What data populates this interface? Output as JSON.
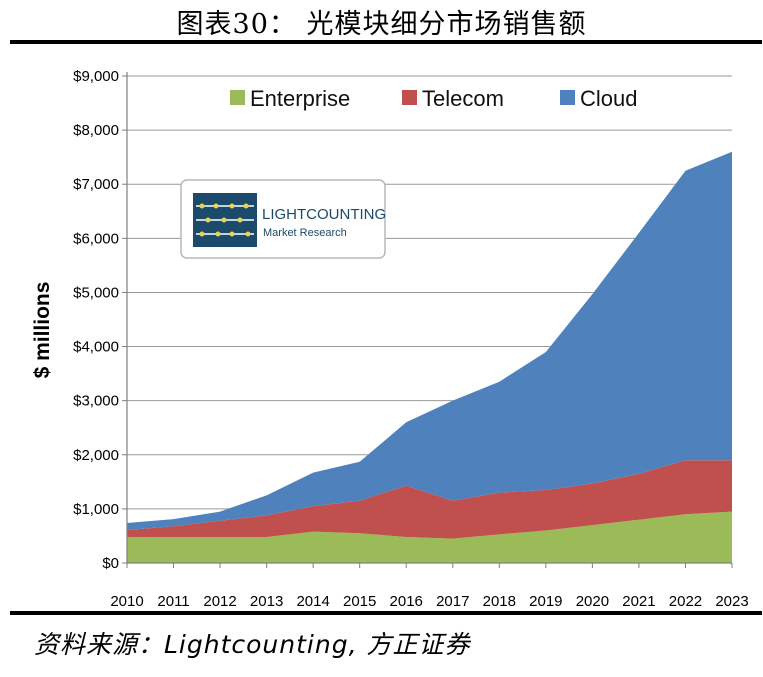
{
  "figure": {
    "title": "图表30：  光模块细分市场销售额",
    "source": "资料来源：Lightcounting, 方正证券"
  },
  "logo": {
    "name": "LIGHTCOUNTING",
    "subtitle": "Market Research"
  },
  "chart_data": {
    "type": "area",
    "stacked": true,
    "title": "",
    "xlabel": "",
    "ylabel": "$ millions",
    "ylim": [
      0,
      9000
    ],
    "yticks": [
      0,
      1000,
      2000,
      3000,
      4000,
      5000,
      6000,
      7000,
      8000,
      9000
    ],
    "ytick_labels": [
      "$0",
      "$1,000",
      "$2,000",
      "$3,000",
      "$4,000",
      "$5,000",
      "$6,000",
      "$7,000",
      "$8,000",
      "$9,000"
    ],
    "grid": true,
    "legend": "top",
    "categories": [
      "2010",
      "2011",
      "2012",
      "2013",
      "2014",
      "2015",
      "2016",
      "2017",
      "2018",
      "2019",
      "2020",
      "2021",
      "2022",
      "2023"
    ],
    "series": [
      {
        "name": "Enterprise",
        "color": "#9bbb59",
        "values": [
          480,
          480,
          480,
          480,
          580,
          550,
          480,
          450,
          530,
          600,
          700,
          800,
          900,
          950
        ]
      },
      {
        "name": "Telecom",
        "color": "#c0504d",
        "values": [
          130,
          200,
          300,
          400,
          470,
          600,
          950,
          700,
          770,
          750,
          770,
          850,
          1000,
          950
        ]
      },
      {
        "name": "Cloud",
        "color": "#4f81bd",
        "values": [
          130,
          130,
          170,
          370,
          620,
          720,
          1170,
          1850,
          2050,
          2550,
          3500,
          4450,
          5350,
          5700
        ]
      }
    ]
  }
}
